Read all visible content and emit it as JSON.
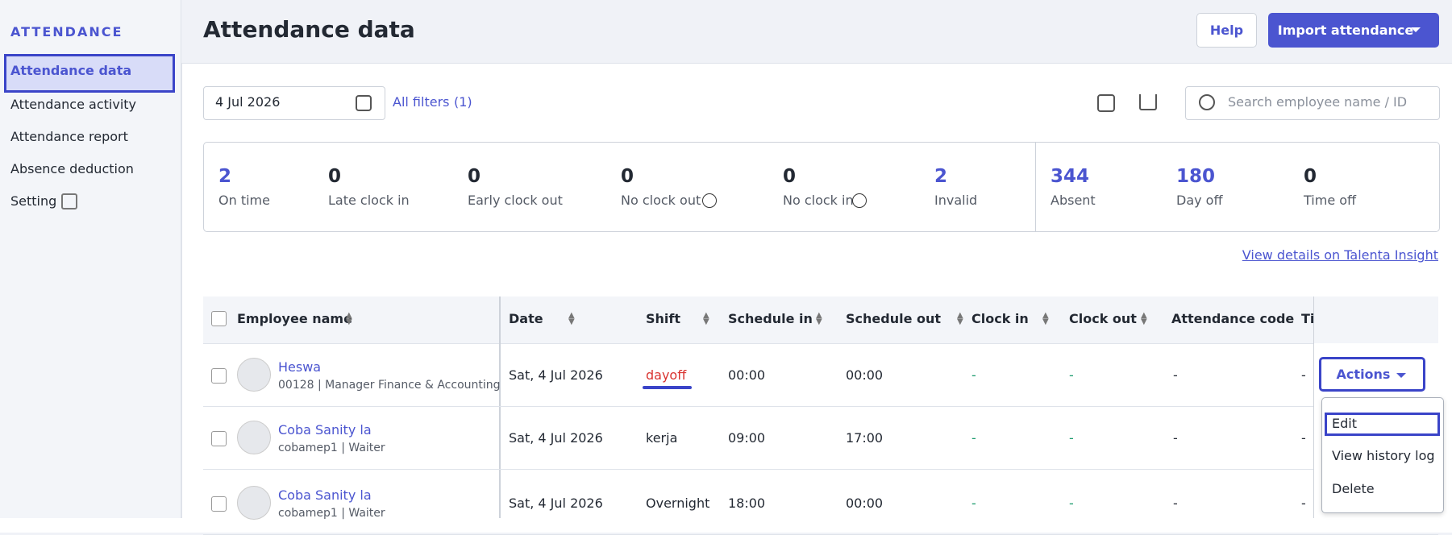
{
  "sidebar": {
    "section": "ATTENDANCE",
    "items": [
      "Attendance data",
      "Attendance activity",
      "Attendance report",
      "Absence deduction",
      "Setting"
    ]
  },
  "header": {
    "title": "Attendance data",
    "help": "Help",
    "import": "Import attendance"
  },
  "toolbar": {
    "date": "4 Jul 2026",
    "filters": "All filters",
    "filter_count": "(1)",
    "search": "Search employee name / ID"
  },
  "stats": [
    {
      "value": 2,
      "label": "On time"
    },
    {
      "value": 0,
      "label": "Late clock in"
    },
    {
      "value": 0,
      "label": "Early clock out"
    },
    {
      "value": 0,
      "label": "No clock out"
    },
    {
      "value": 0,
      "label": "No clock in"
    },
    {
      "value": 2,
      "label": "Invalid"
    },
    {
      "value": 344,
      "label": "Absent"
    },
    {
      "value": 180,
      "label": "Day off"
    },
    {
      "value": 0,
      "label": "Time off"
    }
  ],
  "insight_link": "View details on Talenta Insight",
  "table": {
    "columns": [
      "Employee name",
      "Date",
      "Shift",
      "Schedule in",
      "Schedule out",
      "Clock in",
      "Clock out",
      "Attendance code",
      "Ti"
    ],
    "rows": [
      [
        "Heswa",
        "00128 | Manager Finance & Accounting",
        "Sat, 4 Jul 2026",
        "dayoff",
        "00:00",
        "00:00",
        "-",
        "-",
        "-",
        "-"
      ],
      [
        "Coba Sanity la",
        "cobamep1 | Waiter",
        "Sat, 4 Jul 2026",
        "kerja",
        "09:00",
        "17:00",
        "-",
        "-",
        "-",
        "-"
      ],
      [
        "Coba Sanity la",
        "cobamep1 | Waiter",
        "Sat, 4 Jul 2026",
        "Overnight",
        "18:00",
        "00:00",
        "-",
        "-",
        "-",
        "-"
      ]
    ]
  },
  "actions": {
    "button": "Actions",
    "menu": [
      "Edit",
      "View history log",
      "Delete"
    ]
  }
}
